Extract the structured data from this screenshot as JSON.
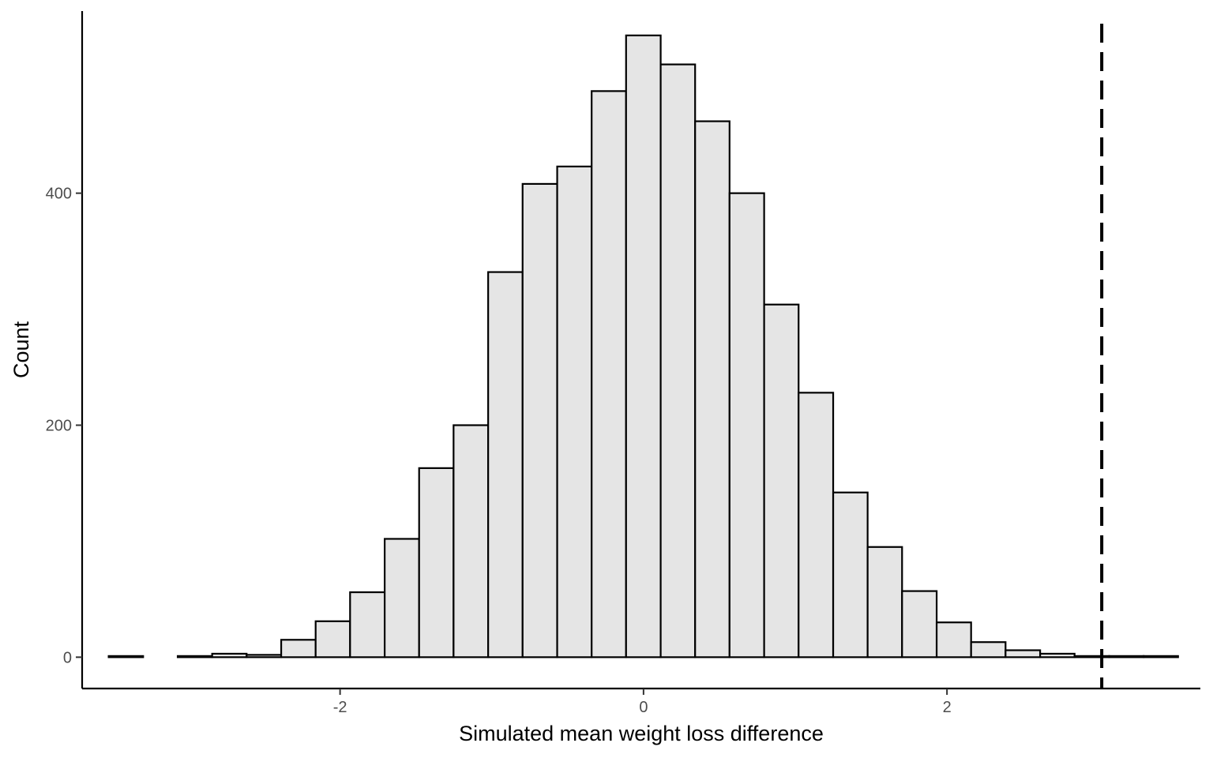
{
  "chart_data": {
    "type": "bar",
    "subtype": "histogram",
    "title": "",
    "xlabel": "Simulated mean weight loss difference",
    "ylabel": "Count",
    "xlim": [
      -3.7,
      3.67
    ],
    "ylim": [
      -27,
      557
    ],
    "x_ticks": [
      -2,
      0,
      2
    ],
    "x_tick_labels": [
      "-2",
      "0",
      "2"
    ],
    "y_ticks": [
      0,
      200,
      400
    ],
    "y_tick_labels": [
      "0",
      "200",
      "400"
    ],
    "bin_width": 0.2274,
    "bins": [
      {
        "x0": -3.525,
        "x1": -3.298,
        "count": 1
      },
      {
        "x0": -3.298,
        "x1": -3.07,
        "count": 0
      },
      {
        "x0": -3.07,
        "x1": -2.843,
        "count": 1
      },
      {
        "x0": -2.843,
        "x1": -2.616,
        "count": 3
      },
      {
        "x0": -2.616,
        "x1": -2.388,
        "count": 2
      },
      {
        "x0": -2.388,
        "x1": -2.161,
        "count": 15
      },
      {
        "x0": -2.161,
        "x1": -1.934,
        "count": 31
      },
      {
        "x0": -1.934,
        "x1": -1.706,
        "count": 56
      },
      {
        "x0": -1.706,
        "x1": -1.479,
        "count": 102
      },
      {
        "x0": -1.479,
        "x1": -1.252,
        "count": 163
      },
      {
        "x0": -1.252,
        "x1": -1.024,
        "count": 200
      },
      {
        "x0": -1.024,
        "x1": -0.797,
        "count": 332
      },
      {
        "x0": -0.797,
        "x1": -0.569,
        "count": 408
      },
      {
        "x0": -0.569,
        "x1": -0.342,
        "count": 423
      },
      {
        "x0": -0.342,
        "x1": -0.115,
        "count": 488
      },
      {
        "x0": -0.115,
        "x1": 0.113,
        "count": 536
      },
      {
        "x0": 0.113,
        "x1": 0.34,
        "count": 511
      },
      {
        "x0": 0.34,
        "x1": 0.567,
        "count": 462
      },
      {
        "x0": 0.567,
        "x1": 0.795,
        "count": 400
      },
      {
        "x0": 0.795,
        "x1": 1.022,
        "count": 304
      },
      {
        "x0": 1.022,
        "x1": 1.25,
        "count": 228
      },
      {
        "x0": 1.25,
        "x1": 1.477,
        "count": 142
      },
      {
        "x0": 1.477,
        "x1": 1.704,
        "count": 95
      },
      {
        "x0": 1.704,
        "x1": 1.932,
        "count": 57
      },
      {
        "x0": 1.932,
        "x1": 2.159,
        "count": 30
      },
      {
        "x0": 2.159,
        "x1": 2.386,
        "count": 13
      },
      {
        "x0": 2.386,
        "x1": 2.614,
        "count": 6
      },
      {
        "x0": 2.614,
        "x1": 2.841,
        "count": 3
      },
      {
        "x0": 2.841,
        "x1": 3.069,
        "count": 1
      },
      {
        "x0": 3.069,
        "x1": 3.296,
        "count": 1
      },
      {
        "x0": 3.296,
        "x1": 3.523,
        "count": 1
      }
    ],
    "reference_line": {
      "x": 3.02,
      "style": "dashed",
      "color": "#000000"
    },
    "bar_fill": "#e5e5e5",
    "bar_stroke": "#000000",
    "grid": false,
    "legend": "none"
  }
}
